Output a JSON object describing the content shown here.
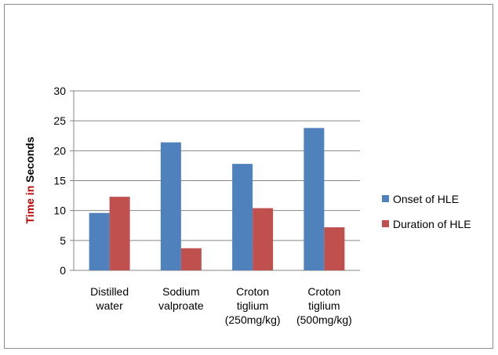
{
  "chart_data": {
    "type": "bar",
    "title": "",
    "xlabel": "",
    "ylabel": {
      "part1": "Time in",
      "part2": "Seconds"
    },
    "ylabel_colors": {
      "part1": "#c00000",
      "part2": "#000000"
    },
    "ylim": [
      0,
      30
    ],
    "yticks": [
      "0",
      "5",
      "10",
      "15",
      "20",
      "25",
      "30"
    ],
    "grid": true,
    "legend_placement": "right",
    "categories": [
      [
        "Distilled",
        "water"
      ],
      [
        "Sodium",
        "valproate"
      ],
      [
        "Croton",
        "tiglium",
        "(250mg/kg)"
      ],
      [
        "Croton",
        "tiglium",
        "(500mg/kg)"
      ]
    ],
    "series": [
      {
        "name": "Onset of HLE",
        "color": "#4f81bd",
        "values": [
          9.6,
          21.4,
          17.8,
          23.8
        ]
      },
      {
        "name": "Duration of HLE",
        "color": "#c0504d",
        "values": [
          12.3,
          3.7,
          10.4,
          7.2
        ]
      }
    ]
  }
}
